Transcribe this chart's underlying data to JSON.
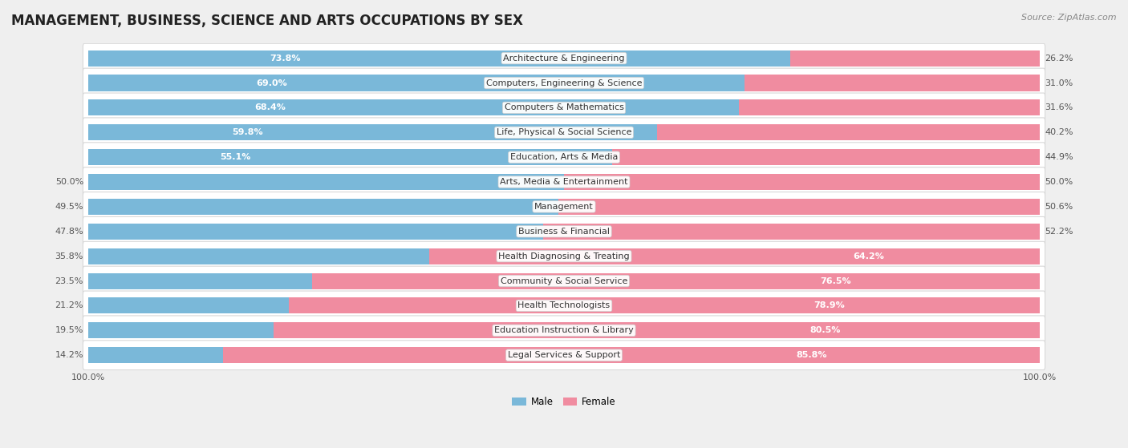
{
  "title": "MANAGEMENT, BUSINESS, SCIENCE AND ARTS OCCUPATIONS BY SEX",
  "source": "Source: ZipAtlas.com",
  "categories": [
    "Architecture & Engineering",
    "Computers, Engineering & Science",
    "Computers & Mathematics",
    "Life, Physical & Social Science",
    "Education, Arts & Media",
    "Arts, Media & Entertainment",
    "Management",
    "Business & Financial",
    "Health Diagnosing & Treating",
    "Community & Social Service",
    "Health Technologists",
    "Education Instruction & Library",
    "Legal Services & Support"
  ],
  "male_pct": [
    73.8,
    69.0,
    68.4,
    59.8,
    55.1,
    50.0,
    49.5,
    47.8,
    35.8,
    23.5,
    21.2,
    19.5,
    14.2
  ],
  "female_pct": [
    26.2,
    31.0,
    31.6,
    40.2,
    44.9,
    50.0,
    50.6,
    52.2,
    64.2,
    76.5,
    78.9,
    80.5,
    85.8
  ],
  "male_color": "#7ab8d9",
  "female_color": "#f08ca0",
  "bg_color": "#efefef",
  "bar_bg_color": "#ffffff",
  "panel_edge_color": "#d8d8d8",
  "title_fontsize": 12,
  "label_fontsize": 8,
  "pct_fontsize": 8,
  "tick_fontsize": 8,
  "source_fontsize": 8
}
